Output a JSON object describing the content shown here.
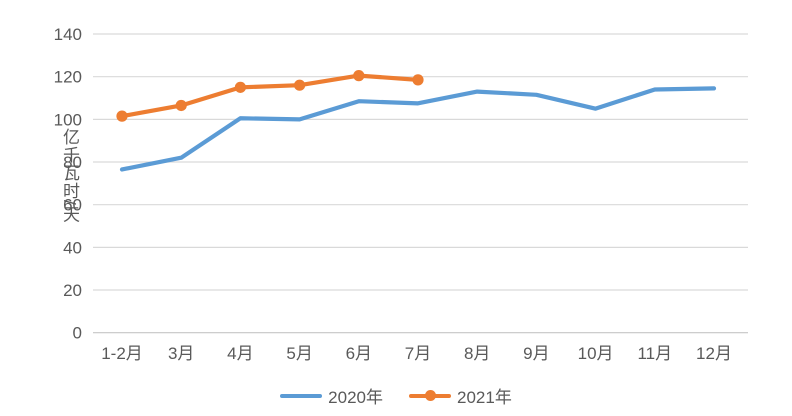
{
  "chart_data": {
    "type": "line",
    "categories": [
      "1-2月",
      "3月",
      "4月",
      "5月",
      "6月",
      "7月",
      "8月",
      "9月",
      "10月",
      "11月",
      "12月"
    ],
    "series": [
      {
        "name": "2020年",
        "color": "#5B9BD5",
        "marker": false,
        "values": [
          76.5,
          82,
          100.5,
          100,
          108.5,
          107.5,
          113,
          111.5,
          105,
          114,
          114.5
        ]
      },
      {
        "name": "2021年",
        "color": "#ED7D31",
        "marker": true,
        "values": [
          101.5,
          106.5,
          115,
          116,
          120.5,
          118.5
        ]
      }
    ],
    "ylabel": "亿千瓦时/天",
    "ylim": [
      0,
      140
    ],
    "ytick_step": 20,
    "yticks": [
      0,
      20,
      40,
      60,
      80,
      100,
      120,
      140
    ],
    "grid": true,
    "legend_position": "bottom"
  },
  "colors": {
    "grid": "#D9D9D9",
    "axis": "#C6C6C6",
    "text": "#595959"
  }
}
